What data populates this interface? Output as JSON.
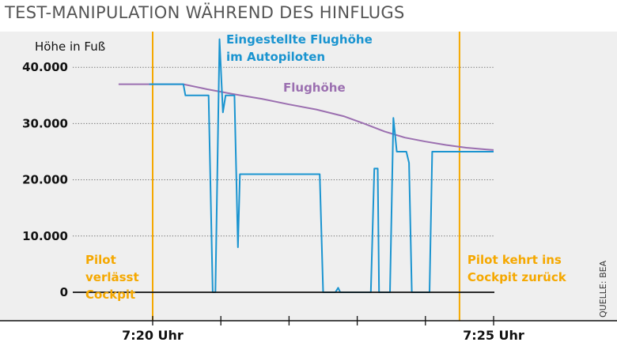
{
  "title": "TEST-MANIPULATION WÄHREND DES HINFLUGS",
  "source": "QUELLE: BEA",
  "chart_data": {
    "type": "line",
    "ylabel": "Höhe in Fuß",
    "ylim": [
      0,
      44000
    ],
    "xlim": [
      -0.8,
      5.35
    ],
    "y_ticks": [
      {
        "value": 0,
        "label": "0"
      },
      {
        "value": 10000,
        "label": "10.000"
      },
      {
        "value": 20000,
        "label": "20.000"
      },
      {
        "value": 30000,
        "label": "30.000"
      },
      {
        "value": 40000,
        "label": "40.000"
      }
    ],
    "x_ticks": [
      0,
      1,
      2,
      3,
      4,
      5
    ],
    "x_tick_labels": [
      {
        "value": 0,
        "label": "7:20 Uhr"
      },
      {
        "value": 5,
        "label": "7:25 Uhr"
      }
    ],
    "x_unit": "minutes after 7:20 Uhr",
    "events": [
      {
        "name": "pilot-leaves",
        "value": 0,
        "label_lines": [
          "Pilot",
          "verlässt",
          "Cockpit"
        ],
        "color": "#f5a800"
      },
      {
        "name": "pilot-returns",
        "value": 4.5,
        "label_lines": [
          "Pilot kehrt ins",
          "Cockpit zurück"
        ],
        "color": "#f5a800"
      }
    ],
    "series": [
      {
        "name": "Flughöhe",
        "label_lines": [
          "Flughöhe"
        ],
        "color": "#9b6fb0",
        "points": [
          [
            -0.5,
            37000
          ],
          [
            0.45,
            37000
          ],
          [
            0.8,
            36100
          ],
          [
            1.2,
            35200
          ],
          [
            1.6,
            34400
          ],
          [
            2.0,
            33400
          ],
          [
            2.4,
            32500
          ],
          [
            2.8,
            31300
          ],
          [
            3.1,
            30000
          ],
          [
            3.4,
            28600
          ],
          [
            3.7,
            27500
          ],
          [
            4.0,
            26800
          ],
          [
            4.3,
            26200
          ],
          [
            4.6,
            25700
          ],
          [
            4.9,
            25400
          ],
          [
            5.0,
            25300
          ]
        ]
      },
      {
        "name": "Eingestellte Flughöhe im Autopiloten",
        "label_lines": [
          "Eingestellte Flughöhe",
          "im Autopiloten"
        ],
        "color": "#1a94d0",
        "points": [
          [
            -0.05,
            37000
          ],
          [
            0.45,
            37000
          ],
          [
            0.48,
            35000
          ],
          [
            0.82,
            35000
          ],
          [
            0.88,
            0
          ],
          [
            0.92,
            0
          ],
          [
            0.98,
            45000
          ],
          [
            1.03,
            32000
          ],
          [
            1.07,
            35000
          ],
          [
            1.2,
            35000
          ],
          [
            1.25,
            8000
          ],
          [
            1.28,
            21000
          ],
          [
            1.32,
            21000
          ],
          [
            2.45,
            21000
          ],
          [
            2.5,
            0
          ],
          [
            2.68,
            0
          ],
          [
            2.72,
            800
          ],
          [
            2.75,
            0
          ],
          [
            3.2,
            0
          ],
          [
            3.25,
            22000
          ],
          [
            3.3,
            22000
          ],
          [
            3.32,
            0
          ],
          [
            3.48,
            0
          ],
          [
            3.53,
            31000
          ],
          [
            3.58,
            25000
          ],
          [
            3.72,
            25000
          ],
          [
            3.76,
            23000
          ],
          [
            3.8,
            0
          ],
          [
            4.06,
            0
          ],
          [
            4.1,
            25000
          ],
          [
            5.0,
            25000
          ]
        ]
      }
    ]
  },
  "colors": {
    "background": "#efefef",
    "event_line": "#f5a800",
    "axis": "#111111",
    "gridline": "#666666"
  }
}
